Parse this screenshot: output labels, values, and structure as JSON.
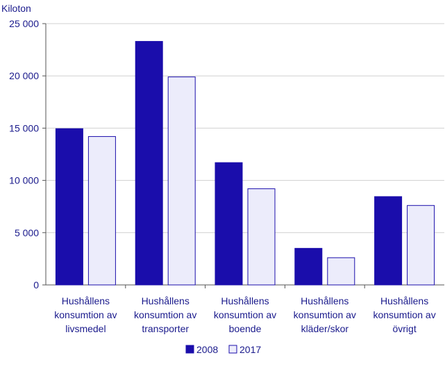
{
  "chart_data": {
    "type": "bar",
    "ylabel": "Kiloton",
    "ylim": [
      0,
      25000
    ],
    "yticks": [
      0,
      5000,
      10000,
      15000,
      20000,
      25000
    ],
    "ytick_labels": [
      "0",
      "5 000",
      "10 000",
      "15 000",
      "20 000",
      "25 000"
    ],
    "categories": [
      [
        "Hushållens",
        "konsumtion av",
        "livsmedel"
      ],
      [
        "Hushållens",
        "konsumtion av",
        "transporter"
      ],
      [
        "Hushållens",
        "konsumtion av",
        "boende"
      ],
      [
        "Hushållens",
        "konsumtion av",
        "kläder/skor"
      ],
      [
        "Hushållens",
        "konsumtion av",
        "övrigt"
      ]
    ],
    "series": [
      {
        "name": "2008",
        "values": [
          14950,
          23300,
          11700,
          3500,
          8450
        ],
        "color": "#1a0dab"
      },
      {
        "name": "2017",
        "values": [
          14200,
          19900,
          9200,
          2600,
          7600
        ],
        "color": "#ececfb"
      }
    ],
    "grid": true,
    "legend_position": "bottom-center",
    "outline_color": "#1a0dab",
    "grid_color": "#d0d0d0",
    "text_color": "#1a1a8c"
  }
}
